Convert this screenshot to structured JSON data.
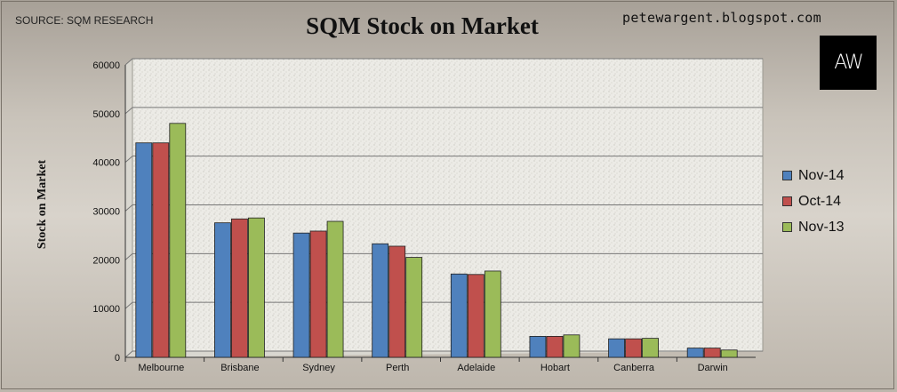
{
  "source": "SOURCE: SQM RESEARCH",
  "blog": "petewargent.blogspot.com",
  "logo_text": "AW",
  "chart_data": {
    "type": "bar",
    "title": "SQM Stock on Market",
    "xlabel": "",
    "ylabel": "Stock on Market",
    "ylim": [
      0,
      60000
    ],
    "yticks": [
      "0",
      "10000",
      "20000",
      "30000",
      "40000",
      "50000",
      "60000"
    ],
    "grid": true,
    "legend_position": "right",
    "categories": [
      "Melbourne",
      "Brisbane",
      "Sydney",
      "Perth",
      "Adelaide",
      "Hobart",
      "Canberra",
      "Darwin"
    ],
    "series": [
      {
        "name": "Nov-14",
        "color": "#4f81bd",
        "values": [
          44000,
          27600,
          25500,
          23300,
          17100,
          4300,
          3800,
          1900
        ]
      },
      {
        "name": "Oct-14",
        "color": "#c0504d",
        "values": [
          44000,
          28400,
          25900,
          22800,
          17000,
          4300,
          3800,
          1900
        ]
      },
      {
        "name": "Nov-13",
        "color": "#9bbb59",
        "values": [
          48000,
          28600,
          27900,
          20500,
          17700,
          4600,
          3900,
          1500
        ]
      }
    ]
  }
}
